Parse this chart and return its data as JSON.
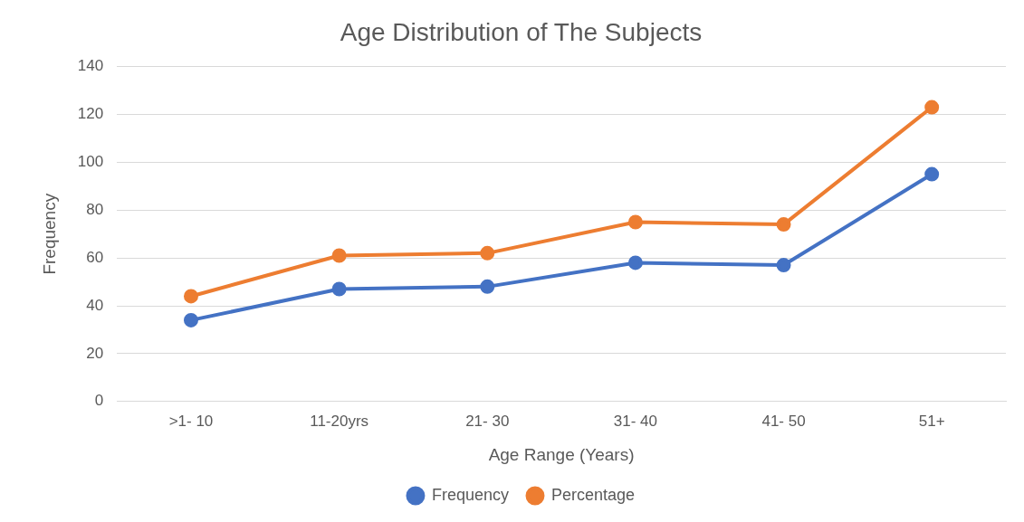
{
  "chart_data": {
    "type": "line",
    "title": "Age Distribution of The Subjects",
    "xlabel": "Age Range (Years)",
    "ylabel": "Frequency",
    "categories": [
      ">1- 10",
      "11-20yrs",
      "21- 30",
      "31- 40",
      "41- 50",
      "51+"
    ],
    "series": [
      {
        "name": "Frequency",
        "color": "#4472c4",
        "values": [
          34,
          47,
          48,
          58,
          57,
          95
        ]
      },
      {
        "name": "Percentage",
        "color": "#ed7d31",
        "values": [
          44,
          61,
          62,
          75,
          74,
          123
        ]
      }
    ],
    "ylim": [
      0,
      140
    ],
    "yticks": [
      0,
      20,
      40,
      60,
      80,
      100,
      120,
      140
    ],
    "grid": "y",
    "legend": "bottom",
    "marker": "circle",
    "line_style": "solid"
  }
}
